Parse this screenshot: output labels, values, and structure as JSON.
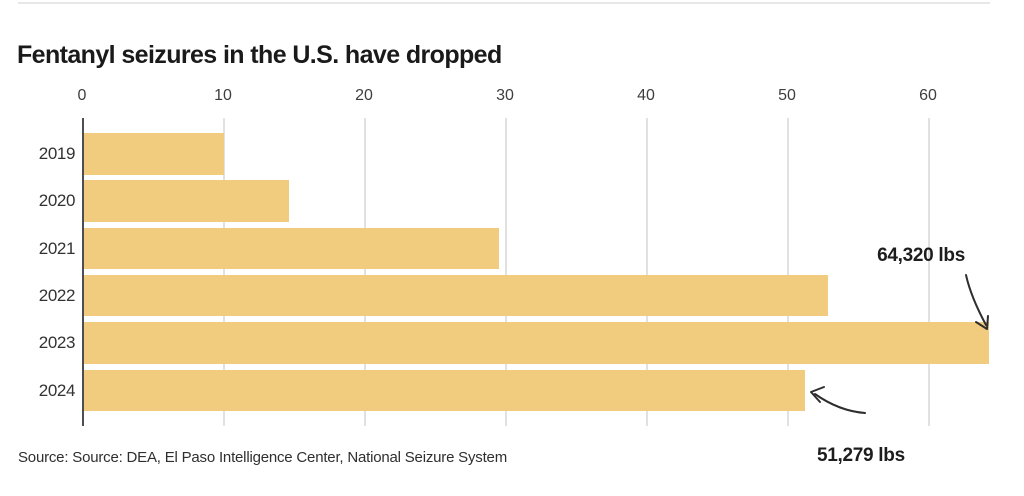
{
  "chart": {
    "title": "Fentanyl seizures in the U.S. have dropped",
    "source": "Source: Source: DEA, El Paso Intelligence Center, National Seizure System",
    "annotations": [
      {
        "label": "64,320 lbs",
        "target_year": "2023"
      },
      {
        "label": "51,279 lbs",
        "target_year": "2024"
      }
    ]
  },
  "chart_data": {
    "type": "bar",
    "orientation": "horizontal",
    "title": "Fentanyl seizures in the U.S. have dropped",
    "categories": [
      "2019",
      "2020",
      "2021",
      "2022",
      "2023",
      "2024"
    ],
    "values": [
      10.1,
      14.7,
      29.6,
      52.9,
      64.32,
      51.279
    ],
    "value_unit": "thousand lbs",
    "x_ticks": [
      0,
      10,
      20,
      30,
      40,
      50,
      60
    ],
    "xlim": [
      0,
      64.5
    ],
    "grid": true,
    "legend": "none",
    "bar_color": "#F1CB7E",
    "axis_color": "#4C4E53",
    "gridline_color": "#E1E1E1",
    "annotations": [
      {
        "label": "64,320 lbs",
        "year": "2023",
        "value": 64.32
      },
      {
        "label": "51,279 lbs",
        "year": "2024",
        "value": 51.279
      }
    ],
    "source": "Source: Source: DEA, El Paso Intelligence Center, National Seizure System"
  }
}
